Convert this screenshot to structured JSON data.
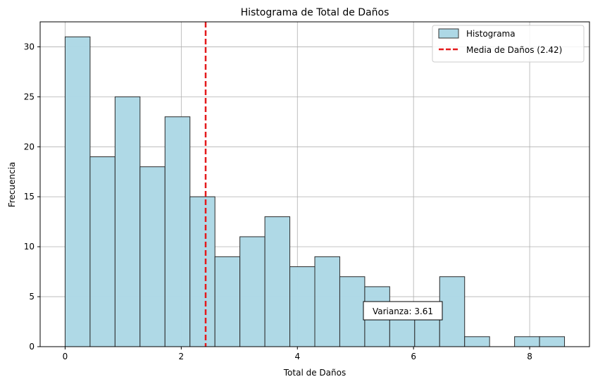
{
  "chart_data": {
    "type": "bar",
    "title": "Histograma de Total de Daños",
    "xlabel": "Total de Daños",
    "ylabel": "Frecuencia",
    "xlim": [
      -0.43,
      9.03
    ],
    "ylim": [
      0,
      32.5
    ],
    "grid": true,
    "legend_position": "top-right",
    "bin_edges": [
      0.0,
      0.43,
      0.86,
      1.29,
      1.72,
      2.15,
      2.58,
      3.01,
      3.44,
      3.87,
      4.3,
      4.73,
      5.16,
      5.59,
      6.02,
      6.45,
      6.88,
      7.31,
      7.74,
      8.17,
      8.6
    ],
    "values": [
      31,
      19,
      25,
      18,
      23,
      15,
      9,
      11,
      13,
      8,
      9,
      7,
      6,
      3,
      3,
      7,
      1,
      0,
      1,
      1
    ],
    "x_ticks": [
      0,
      2,
      4,
      6,
      8
    ],
    "y_ticks": [
      0,
      5,
      10,
      15,
      20,
      25,
      30
    ],
    "mean": 2.42,
    "series": [
      {
        "name": "Histograma",
        "color": "#add8e6"
      },
      {
        "name": "Media de Daños (2.42)",
        "color": "#e41a1c",
        "style": "dashed"
      }
    ],
    "annotation": "Varianza: 3.61"
  }
}
